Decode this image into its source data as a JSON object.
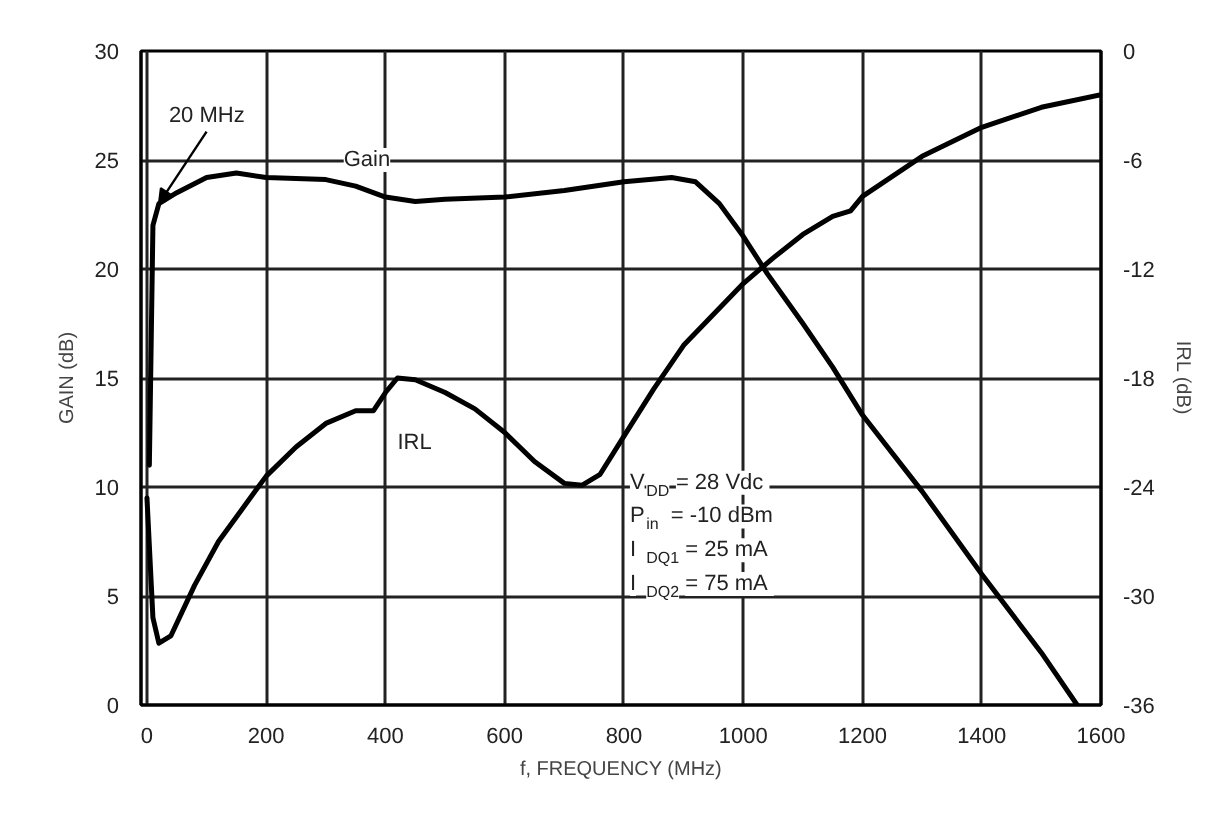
{
  "chart_data": {
    "type": "line",
    "xlabel": "f, FREQUENCY (MHz)",
    "ylabel": "GAIN (dB)",
    "y2label": "IRL (dB)",
    "xlim": [
      -10,
      1600
    ],
    "xticks": [
      0,
      200,
      400,
      600,
      800,
      1000,
      1200,
      1400,
      1600
    ],
    "ylim": [
      0,
      30
    ],
    "yticks": [
      0,
      5,
      10,
      15,
      20,
      25,
      30
    ],
    "y2lim": [
      -36,
      0
    ],
    "y2ticks": [
      -36,
      -30,
      -24,
      -18,
      -12,
      -6,
      0
    ],
    "grid": true,
    "marker": "none",
    "line_style": "solid",
    "series": [
      {
        "name": "Gain",
        "color": "#000000",
        "x": [
          4,
          10,
          20,
          50,
          100,
          150,
          200,
          300,
          350,
          400,
          450,
          500,
          600,
          700,
          800,
          880,
          920,
          960,
          1000,
          1040,
          1100,
          1150,
          1200,
          1300,
          1400,
          1500,
          1560
        ],
        "values": [
          11,
          22,
          23,
          23.5,
          24.2,
          24.4,
          24.2,
          24.1,
          23.8,
          23.3,
          23.1,
          23.2,
          23.3,
          23.6,
          24,
          24.2,
          24,
          23,
          21.5,
          19.8,
          17.5,
          15.5,
          13.3,
          9.8,
          6,
          2.4,
          0
        ]
      },
      {
        "name": "IRL",
        "color": "#000000",
        "axis": "y2",
        "x": [
          0,
          10,
          20,
          40,
          80,
          120,
          200,
          250,
          300,
          350,
          380,
          400,
          420,
          450,
          500,
          550,
          600,
          650,
          700,
          730,
          760,
          800,
          850,
          900,
          1000,
          1050,
          1100,
          1150,
          1180,
          1200,
          1300,
          1400,
          1500,
          1600
        ],
        "values": [
          -24.6,
          -31.2,
          -32.6,
          -32.2,
          -29.4,
          -27,
          -23.4,
          -21.8,
          -20.5,
          -19.8,
          -19.8,
          -18.8,
          -18,
          -18.1,
          -18.8,
          -19.7,
          -21,
          -22.6,
          -23.8,
          -23.9,
          -23.3,
          -21.2,
          -18.6,
          -16.2,
          -12.8,
          -11.4,
          -10.1,
          -9.1,
          -8.8,
          -8,
          -5.8,
          -4.2,
          -3.1,
          -2.4
        ]
      }
    ],
    "annotations": [
      {
        "text": "20 MHz",
        "x": 20,
        "y": 23
      },
      "V$_{DD}$ = 28 Vdc",
      "P$_{in}$ = -10 dBm",
      "I$_{DQ1}$ = 25 mA",
      "I$_{DQ2}$ = 75 mA"
    ]
  }
}
